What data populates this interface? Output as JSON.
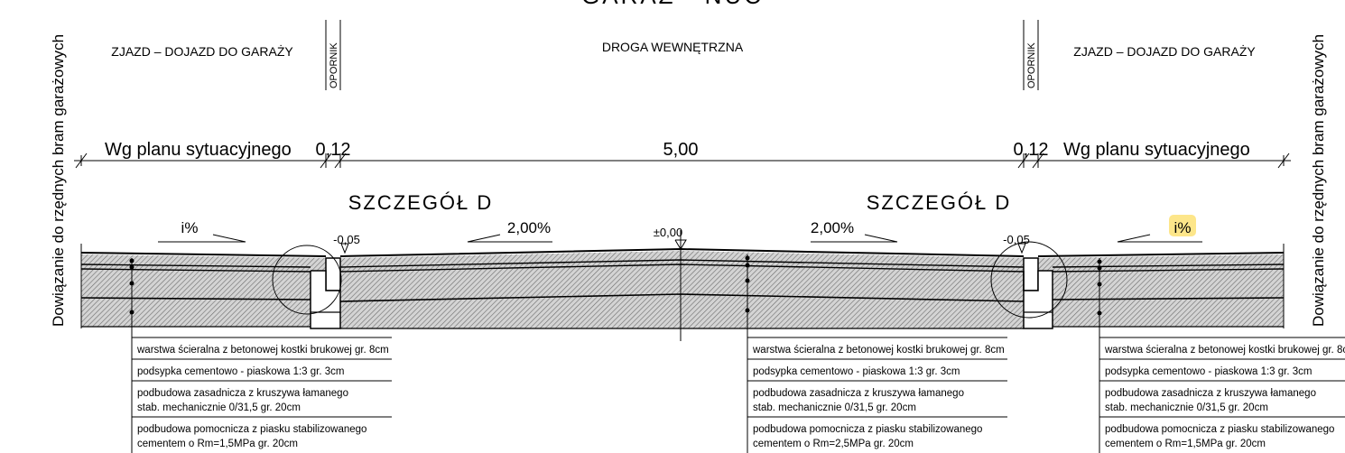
{
  "header": {
    "top_title": "GARAŻ - NUC",
    "left_zone": "ZJAZD – DOJAZD DO GARAŻY",
    "center_zone": "DROGA WEWNĘTRZNA",
    "right_zone": "ZJAZD – DOJAZD DO GARAŻY",
    "opornik": "OPORNIK"
  },
  "side_notes": {
    "left": "Dowiązanie do rzędnych bram garażowych",
    "right": "Dowiązanie do rzędnych bram garażowych"
  },
  "dimensions": {
    "left_plan": "Wg planu sytuacyjnego",
    "left_curb": "0,12",
    "road_width": "5,00",
    "right_curb": "0,12",
    "right_plan": "Wg planu sytuacyjnego"
  },
  "details": {
    "left": "SZCZEGÓŁ D",
    "right": "SZCZEGÓŁ D"
  },
  "slopes": {
    "left_ramp": "i%",
    "left_road": "2,00%",
    "right_road": "2,00%",
    "right_ramp": "i%"
  },
  "levels": {
    "axis": "±0,00",
    "left_curb": "-0,05",
    "right_curb": "-0,05"
  },
  "layers": {
    "left": [
      "warstwa ścieralna z betonowej kostki brukowej gr. 8cm",
      "podsypka cementowo - piaskowa 1:3 gr. 3cm",
      "podbudowa zasadnicza z kruszywa łamanego",
      "stab. mechanicznie 0/31,5 gr. 20cm",
      "podbudowa pomocnicza z piasku stabilizowanego",
      "cementem o Rm=1,5MPa gr. 20cm"
    ],
    "center": [
      "warstwa ścieralna z betonowej kostki brukowej gr. 8cm",
      "podsypka cementowo - piaskowa 1:3 gr. 3cm",
      "podbudowa zasadnicza z kruszywa łamanego",
      "stab. mechanicznie 0/31,5 gr. 20cm",
      "podbudowa pomocnicza z piasku stabilizowanego",
      "cementem o Rm=2,5MPa gr. 20cm"
    ],
    "right": [
      "warstwa ścieralna z betonowej kostki brukowej gr. 8c",
      "podsypka cementowo - piaskowa 1:3 gr. 3cm",
      "podbudowa zasadnicza z kruszywa łamanego",
      "stab. mechanicznie 0/31,5 gr. 20cm",
      "podbudowa pomocnicza z piasku stabilizowanego",
      "cementem o Rm=1,5MPa gr. 20cm"
    ]
  },
  "colors": {
    "ink": "#000000",
    "highlight": "#fde68a"
  }
}
